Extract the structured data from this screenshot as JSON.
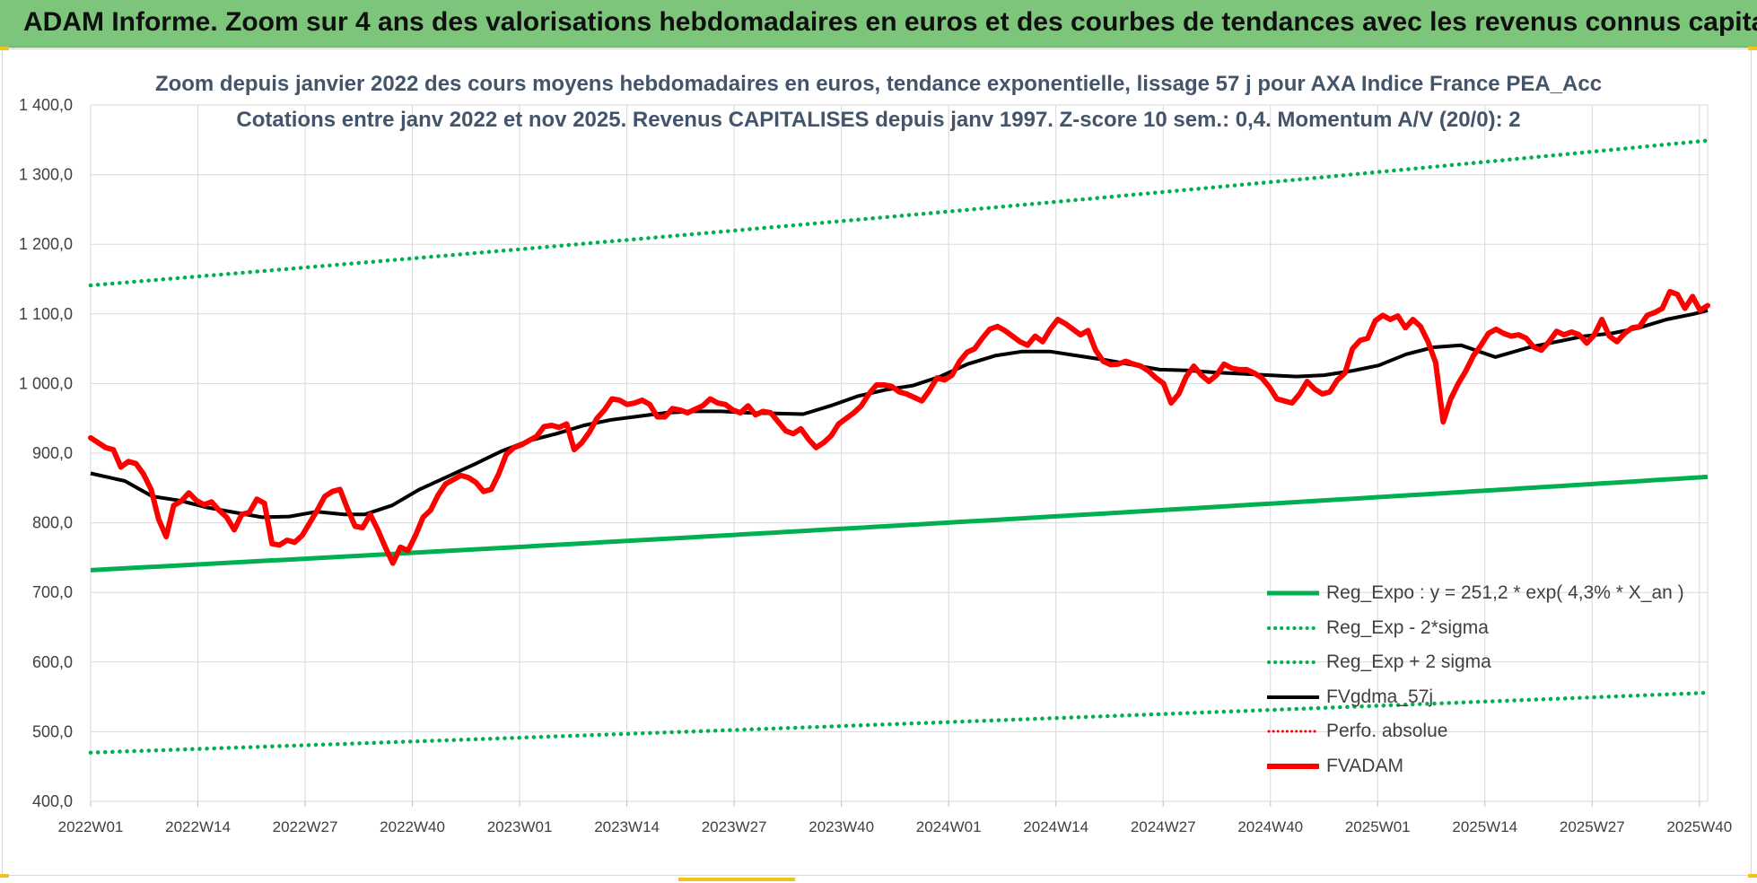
{
  "header": {
    "title": "ADAM Informe. Zoom sur 4 ans des valorisations hebdomadaires en euros et des courbes de tendances avec les revenus connus capitalisés"
  },
  "colors": {
    "banner": "#7dc57a",
    "green": "#00b050",
    "black": "#000000",
    "red": "#ff0000",
    "grid": "#d9d9d9"
  },
  "chart_data": {
    "type": "line",
    "title_line1": "Zoom depuis janvier 2022 des cours moyens hebdomadaires en euros, tendance exponentielle, lissage 57 j pour AXA Indice France PEA_Acc",
    "title_line2": "Cotations entre janv 2022 et nov 2025. Revenus CAPITALISES depuis janv 1997. Z-score 10 sem.: 0,4. Momentum A/V (20/0): 2",
    "ylim": [
      400,
      1400
    ],
    "yticks": [
      400,
      500,
      600,
      700,
      800,
      900,
      1000,
      1100,
      1200,
      1300,
      1400
    ],
    "ytick_labels": [
      "400,0",
      "500,0",
      "600,0",
      "700,0",
      "800,0",
      "900,0",
      "1 000,0",
      "1 100,0",
      "1 200,0",
      "1 300,0",
      "1 400,0"
    ],
    "x_count": 196,
    "x_tick_labels": [
      "2022W01",
      "2022W14",
      "2022W27",
      "2022W40",
      "2023W01",
      "2023W14",
      "2023W27",
      "2023W40",
      "2024W01",
      "2024W14",
      "2024W27",
      "2024W40",
      "2025W01",
      "2025W14",
      "2025W27",
      "2025W40"
    ],
    "x_tick_every": 13,
    "series": [
      {
        "name": "Reg_Expo : y = 251,2 * exp( 4,3% *  X_an )",
        "style": "solid-green",
        "start": 732,
        "end": 866
      },
      {
        "name": "Reg_Exp - 2*sigma",
        "style": "dotted-green",
        "start": 470,
        "end": 556
      },
      {
        "name": "Reg_Exp + 2 sigma",
        "style": "dotted-green",
        "start": 1141,
        "end": 1349
      },
      {
        "name": "FVgdma_57j",
        "style": "solid-black",
        "keypoints": [
          [
            0,
            871
          ],
          [
            5,
            860
          ],
          [
            9,
            838
          ],
          [
            13,
            832
          ],
          [
            17,
            822
          ],
          [
            21,
            815
          ],
          [
            25,
            808
          ],
          [
            29,
            809
          ],
          [
            33,
            816
          ],
          [
            37,
            812
          ],
          [
            40,
            812
          ],
          [
            44,
            825
          ],
          [
            48,
            848
          ],
          [
            52,
            866
          ],
          [
            56,
            884
          ],
          [
            60,
            903
          ],
          [
            64,
            918
          ],
          [
            68,
            928
          ],
          [
            72,
            940
          ],
          [
            76,
            948
          ],
          [
            80,
            953
          ],
          [
            84,
            958
          ],
          [
            88,
            960
          ],
          [
            92,
            960
          ],
          [
            96,
            958
          ],
          [
            100,
            957
          ],
          [
            104,
            956
          ],
          [
            108,
            968
          ],
          [
            112,
            982
          ],
          [
            116,
            991
          ],
          [
            120,
            997
          ],
          [
            124,
            1010
          ],
          [
            128,
            1028
          ],
          [
            132,
            1040
          ],
          [
            136,
            1046
          ],
          [
            140,
            1046
          ],
          [
            144,
            1040
          ],
          [
            148,
            1034
          ],
          [
            152,
            1027
          ],
          [
            156,
            1020
          ],
          [
            160,
            1019
          ],
          [
            164,
            1016
          ],
          [
            168,
            1014
          ],
          [
            172,
            1012
          ],
          [
            176,
            1010
          ],
          [
            180,
            1012
          ],
          [
            184,
            1018
          ],
          [
            188,
            1026
          ],
          [
            192,
            1042
          ],
          [
            196,
            1052
          ],
          [
            200,
            1055
          ],
          [
            205,
            1038
          ],
          [
            210,
            1052
          ],
          [
            214,
            1060
          ],
          [
            218,
            1068
          ],
          [
            222,
            1072
          ],
          [
            226,
            1080
          ],
          [
            230,
            1092
          ],
          [
            234,
            1100
          ],
          [
            236,
            1105
          ]
        ]
      },
      {
        "name": "Perfo. absolue",
        "style": "dotted-red",
        "values": []
      },
      {
        "name": "FVADAM",
        "style": "solid-red",
        "keypoints": [
          [
            0,
            922
          ],
          [
            2,
            908
          ],
          [
            3,
            905
          ],
          [
            4,
            880
          ],
          [
            5,
            888
          ],
          [
            6,
            885
          ],
          [
            7,
            870
          ],
          [
            8,
            848
          ],
          [
            9,
            805
          ],
          [
            10,
            780
          ],
          [
            11,
            825
          ],
          [
            12,
            831
          ],
          [
            13,
            843
          ],
          [
            14,
            832
          ],
          [
            15,
            826
          ],
          [
            16,
            830
          ],
          [
            17,
            818
          ],
          [
            18,
            808
          ],
          [
            19,
            790
          ],
          [
            20,
            812
          ],
          [
            21,
            815
          ],
          [
            22,
            834
          ],
          [
            23,
            828
          ],
          [
            24,
            770
          ],
          [
            25,
            768
          ],
          [
            26,
            775
          ],
          [
            27,
            772
          ],
          [
            28,
            782
          ],
          [
            29,
            800
          ],
          [
            30,
            818
          ],
          [
            31,
            838
          ],
          [
            32,
            845
          ],
          [
            33,
            848
          ],
          [
            34,
            820
          ],
          [
            35,
            795
          ],
          [
            36,
            793
          ],
          [
            37,
            812
          ],
          [
            38,
            790
          ],
          [
            39,
            765
          ],
          [
            40,
            742
          ],
          [
            41,
            765
          ],
          [
            42,
            760
          ],
          [
            43,
            782
          ],
          [
            44,
            808
          ],
          [
            45,
            818
          ],
          [
            46,
            840
          ],
          [
            47,
            856
          ],
          [
            48,
            862
          ],
          [
            49,
            868
          ],
          [
            50,
            865
          ],
          [
            51,
            858
          ],
          [
            52,
            845
          ],
          [
            53,
            848
          ],
          [
            54,
            870
          ],
          [
            55,
            898
          ],
          [
            56,
            908
          ],
          [
            57,
            912
          ],
          [
            58,
            918
          ],
          [
            59,
            924
          ],
          [
            60,
            938
          ],
          [
            61,
            940
          ],
          [
            62,
            937
          ],
          [
            63,
            942
          ],
          [
            64,
            905
          ],
          [
            65,
            915
          ],
          [
            66,
            930
          ],
          [
            67,
            950
          ],
          [
            68,
            962
          ],
          [
            69,
            978
          ],
          [
            70,
            976
          ],
          [
            71,
            970
          ],
          [
            72,
            972
          ],
          [
            73,
            976
          ],
          [
            74,
            970
          ],
          [
            75,
            952
          ],
          [
            76,
            952
          ],
          [
            77,
            964
          ],
          [
            78,
            962
          ],
          [
            79,
            958
          ],
          [
            80,
            963
          ],
          [
            81,
            968
          ],
          [
            82,
            978
          ],
          [
            83,
            972
          ],
          [
            84,
            970
          ],
          [
            85,
            962
          ],
          [
            86,
            958
          ],
          [
            87,
            968
          ],
          [
            88,
            955
          ],
          [
            89,
            960
          ],
          [
            90,
            958
          ],
          [
            91,
            945
          ],
          [
            92,
            932
          ],
          [
            93,
            928
          ],
          [
            94,
            935
          ],
          [
            95,
            920
          ],
          [
            96,
            908
          ],
          [
            97,
            915
          ],
          [
            98,
            925
          ],
          [
            99,
            942
          ],
          [
            100,
            950
          ],
          [
            101,
            958
          ],
          [
            102,
            968
          ],
          [
            103,
            985
          ],
          [
            104,
            998
          ],
          [
            105,
            998
          ],
          [
            106,
            996
          ],
          [
            107,
            988
          ],
          [
            108,
            985
          ],
          [
            109,
            980
          ],
          [
            110,
            975
          ],
          [
            111,
            990
          ],
          [
            112,
            1008
          ],
          [
            113,
            1005
          ],
          [
            114,
            1012
          ],
          [
            115,
            1032
          ],
          [
            116,
            1045
          ],
          [
            117,
            1050
          ],
          [
            118,
            1065
          ],
          [
            119,
            1078
          ],
          [
            120,
            1082
          ],
          [
            121,
            1076
          ],
          [
            122,
            1068
          ],
          [
            123,
            1060
          ],
          [
            124,
            1055
          ],
          [
            125,
            1068
          ],
          [
            126,
            1060
          ],
          [
            127,
            1078
          ],
          [
            128,
            1092
          ],
          [
            129,
            1086
          ],
          [
            130,
            1078
          ],
          [
            131,
            1070
          ],
          [
            132,
            1076
          ],
          [
            133,
            1048
          ],
          [
            134,
            1032
          ],
          [
            135,
            1027
          ],
          [
            136,
            1028
          ],
          [
            137,
            1032
          ],
          [
            138,
            1028
          ],
          [
            139,
            1025
          ],
          [
            140,
            1018
          ],
          [
            141,
            1008
          ],
          [
            142,
            1000
          ],
          [
            143,
            972
          ],
          [
            144,
            985
          ],
          [
            145,
            1010
          ],
          [
            146,
            1025
          ],
          [
            147,
            1012
          ],
          [
            148,
            1003
          ],
          [
            149,
            1012
          ],
          [
            150,
            1028
          ],
          [
            151,
            1022
          ],
          [
            152,
            1020
          ],
          [
            153,
            1020
          ],
          [
            154,
            1015
          ],
          [
            155,
            1008
          ],
          [
            156,
            995
          ],
          [
            157,
            978
          ],
          [
            158,
            975
          ],
          [
            159,
            972
          ],
          [
            160,
            985
          ],
          [
            161,
            1003
          ],
          [
            162,
            992
          ],
          [
            163,
            985
          ],
          [
            164,
            988
          ],
          [
            165,
            1005
          ],
          [
            166,
            1015
          ],
          [
            167,
            1050
          ],
          [
            168,
            1062
          ],
          [
            169,
            1065
          ],
          [
            170,
            1090
          ],
          [
            171,
            1098
          ],
          [
            172,
            1092
          ],
          [
            173,
            1097
          ],
          [
            174,
            1080
          ],
          [
            175,
            1092
          ],
          [
            176,
            1082
          ],
          [
            177,
            1060
          ],
          [
            178,
            1030
          ],
          [
            179,
            945
          ],
          [
            180,
            978
          ],
          [
            181,
            1000
          ],
          [
            182,
            1018
          ],
          [
            183,
            1040
          ],
          [
            184,
            1055
          ],
          [
            185,
            1072
          ],
          [
            186,
            1078
          ],
          [
            187,
            1072
          ],
          [
            188,
            1068
          ],
          [
            189,
            1070
          ],
          [
            190,
            1065
          ],
          [
            191,
            1052
          ],
          [
            192,
            1048
          ],
          [
            193,
            1060
          ],
          [
            194,
            1075
          ],
          [
            195,
            1070
          ],
          [
            196,
            1074
          ],
          [
            197,
            1070
          ],
          [
            198,
            1058
          ],
          [
            199,
            1070
          ],
          [
            200,
            1092
          ],
          [
            201,
            1068
          ],
          [
            202,
            1060
          ],
          [
            203,
            1072
          ],
          [
            204,
            1080
          ],
          [
            205,
            1082
          ],
          [
            206,
            1098
          ],
          [
            207,
            1102
          ],
          [
            208,
            1108
          ],
          [
            209,
            1132
          ],
          [
            210,
            1128
          ],
          [
            211,
            1108
          ],
          [
            212,
            1125
          ],
          [
            213,
            1105
          ],
          [
            214,
            1112
          ]
        ]
      }
    ]
  }
}
